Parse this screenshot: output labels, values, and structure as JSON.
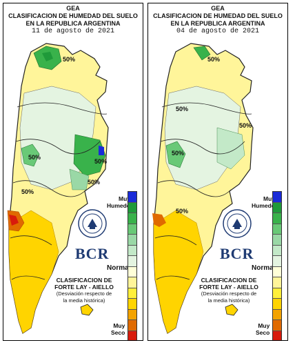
{
  "panels": [
    {
      "org": "GEA",
      "title_line1": "CLASIFICACION DE HUMEDAD DEL SUELO",
      "title_line2": "EN LA REPUBLICA ARGENTINA",
      "date": "11 de agosto de 2021",
      "contour_labels": [
        "50%",
        "50%",
        "50%",
        "50%",
        "50%"
      ]
    },
    {
      "org": "GEA",
      "title_line1": "CLASIFICACION DE HUMEDAD DEL SUELO",
      "title_line2": "EN LA REPUBLICA ARGENTINA",
      "date": "04 de agosto de 2021",
      "contour_labels": [
        "50%",
        "50%",
        "50%",
        "50%",
        "50%"
      ]
    }
  ],
  "legend": {
    "top_label_1": "Muy",
    "top_label_2": "Humedo",
    "middle_label": "Normal",
    "bottom_label_1": "Muy",
    "bottom_label_2": "Seco",
    "method_line1": "CLASIFICACION DE",
    "method_line2": "FORTE LAY - AIELLO",
    "method_line3": "(Desviación respecto de",
    "method_line4": "la media histórica)",
    "colors": [
      "#1a2bd8",
      "#1f9a3a",
      "#39b24b",
      "#69c977",
      "#9ad8a6",
      "#c3e9c8",
      "#e4f4e1",
      "#ffffd9",
      "#fff59a",
      "#ffef3a",
      "#ffd400",
      "#f3a300",
      "#e06a00",
      "#d81b0c"
    ]
  },
  "logo": {
    "text": "BCR",
    "seal_text": "BOLSA DE COMERCIO DE ROSARIO"
  }
}
